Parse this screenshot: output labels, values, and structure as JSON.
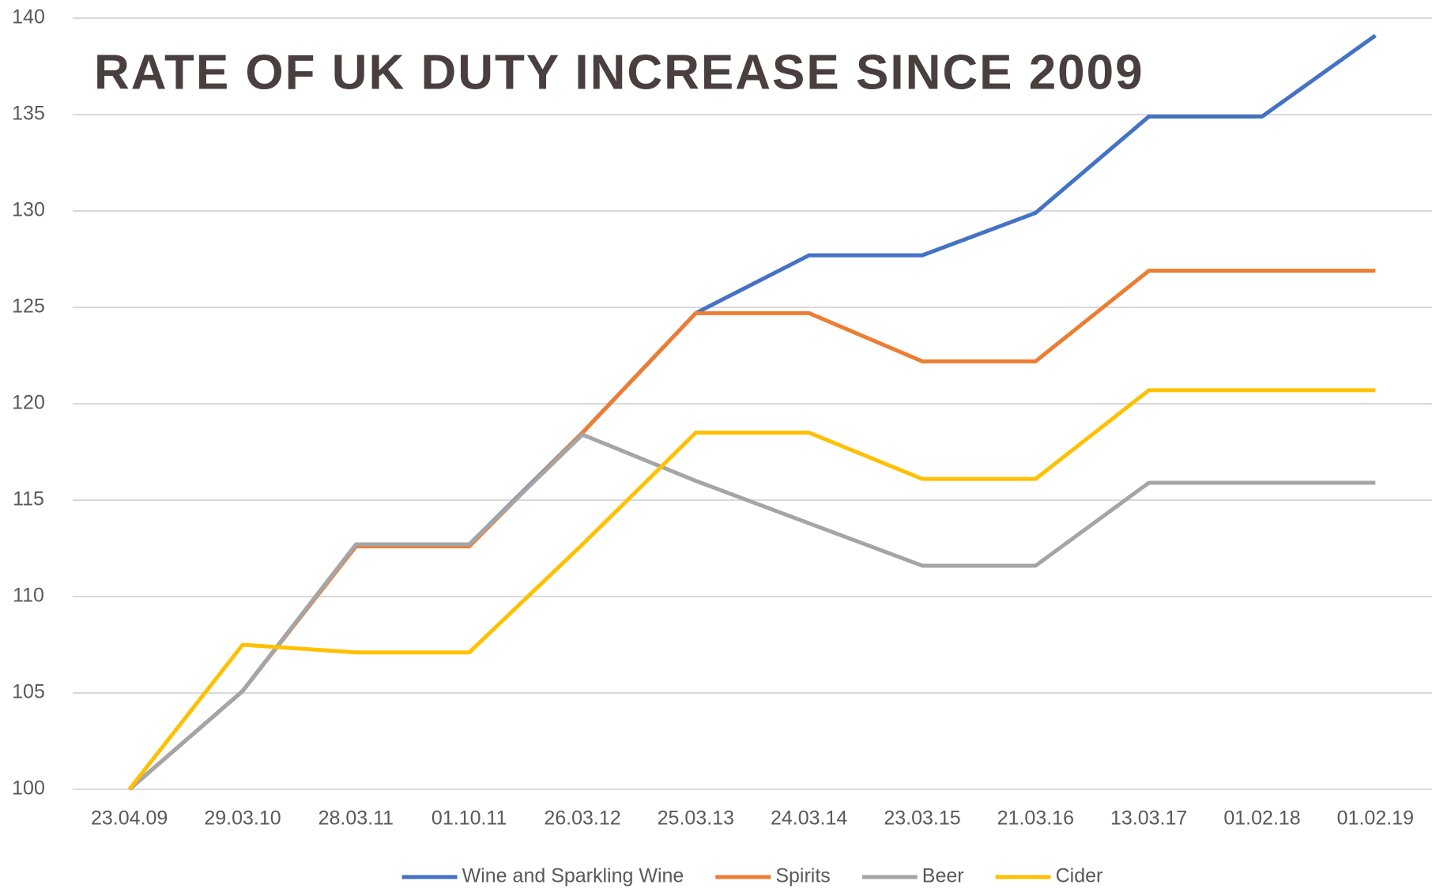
{
  "chart_data": {
    "type": "line",
    "title": "RATE OF UK DUTY INCREASE SINCE 2009",
    "categories": [
      "23.04.09",
      "29.03.10",
      "28.03.11",
      "01.10.11",
      "26.03.12",
      "25.03.13",
      "24.03.14",
      "23.03.15",
      "21.03.16",
      "13.03.17",
      "01.02.18",
      "01.02.19"
    ],
    "series": [
      {
        "name": "Wine and Sparkling Wine",
        "color": "#4472c4",
        "values": [
          100,
          105.1,
          112.7,
          112.7,
          118.5,
          124.7,
          127.7,
          127.7,
          129.9,
          134.9,
          134.9,
          139.1
        ]
      },
      {
        "name": "Spirits",
        "color": "#ed7d31",
        "values": [
          100,
          105.1,
          112.6,
          112.6,
          118.5,
          124.7,
          124.7,
          122.2,
          122.2,
          126.9,
          126.9,
          126.9
        ]
      },
      {
        "name": "Beer",
        "color": "#a5a5a5",
        "values": [
          100,
          105.1,
          112.7,
          112.7,
          118.4,
          116.0,
          113.8,
          111.6,
          111.6,
          115.9,
          115.9,
          115.9
        ]
      },
      {
        "name": "Cider",
        "color": "#ffc000",
        "values": [
          100,
          107.5,
          107.1,
          107.1,
          112.7,
          118.5,
          118.5,
          116.1,
          116.1,
          120.7,
          120.7,
          120.7
        ]
      }
    ],
    "ylim": [
      100,
      140
    ],
    "yticks": [
      100,
      105,
      110,
      115,
      120,
      125,
      130,
      135,
      140
    ],
    "grid": true,
    "legend": "bottom"
  }
}
